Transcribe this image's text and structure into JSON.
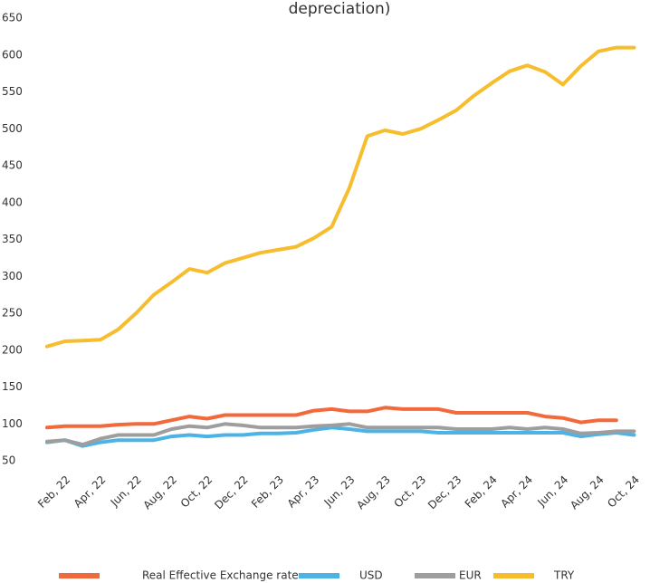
{
  "chart_data": {
    "type": "line",
    "title": "depreciation)",
    "categories": [
      null,
      "Feb, 22",
      null,
      "Apr, 22",
      null,
      "Jun, 22",
      null,
      "Aug, 22",
      null,
      "Oct, 22",
      null,
      "Dec, 22",
      null,
      "Feb, 23",
      null,
      "Apr, 23",
      null,
      "Jun, 23",
      null,
      "Aug, 23",
      null,
      "Oct, 23",
      null,
      "Dec, 23",
      null,
      "Feb, 24",
      null,
      "Apr, 24",
      null,
      "Jun, 24",
      null,
      "Aug, 24",
      null,
      "Oct, 24"
    ],
    "series": [
      {
        "name": "Real Effective Exchange rate",
        "color": "#f26a3b",
        "values": [
          95,
          97,
          97,
          97,
          99,
          100,
          100,
          105,
          110,
          107,
          112,
          112,
          112,
          112,
          112,
          118,
          120,
          117,
          117,
          122,
          120,
          120,
          120,
          115,
          115,
          115,
          115,
          115,
          110,
          108,
          102,
          105,
          105,
          null
        ]
      },
      {
        "name": "USD",
        "color": "#4db3e6",
        "values": [
          75,
          78,
          70,
          75,
          78,
          78,
          78,
          83,
          85,
          83,
          85,
          85,
          87,
          87,
          88,
          92,
          95,
          93,
          90,
          90,
          90,
          90,
          88,
          88,
          88,
          88,
          88,
          88,
          88,
          88,
          83,
          86,
          88,
          85
        ]
      },
      {
        "name": "EUR",
        "color": "#9e9e9e",
        "values": [
          76,
          78,
          72,
          80,
          85,
          85,
          85,
          93,
          97,
          95,
          100,
          98,
          95,
          95,
          95,
          97,
          98,
          100,
          95,
          95,
          95,
          95,
          95,
          93,
          93,
          93,
          95,
          93,
          95,
          93,
          87,
          88,
          90,
          90
        ]
      },
      {
        "name": "TRY",
        "color": "#f6be2f",
        "values": [
          205,
          212,
          213,
          214,
          228,
          250,
          275,
          292,
          310,
          305,
          318,
          325,
          332,
          336,
          340,
          352,
          367,
          420,
          490,
          498,
          493,
          500,
          512,
          525,
          545,
          562,
          578,
          586,
          577,
          560,
          585,
          605,
          610,
          610
        ]
      }
    ],
    "ylim": [
      50,
      650
    ],
    "yticks": [
      50,
      100,
      150,
      200,
      250,
      300,
      350,
      400,
      450,
      500,
      550,
      600,
      650
    ],
    "grid": false,
    "legend": "bottom"
  }
}
